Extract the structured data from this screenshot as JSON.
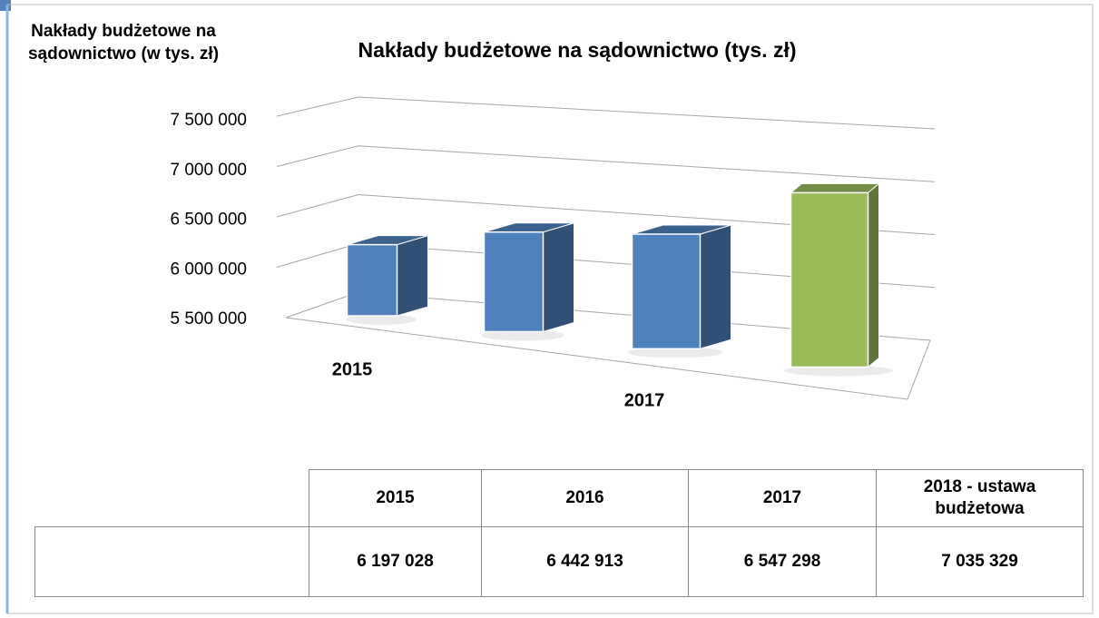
{
  "chart_data": {
    "type": "bar",
    "title": "Nakłady budżetowe na sądownictwo (tys. zł)",
    "categories": [
      "2015",
      "2016",
      "2017",
      "2018 - ustawa budżetowa"
    ],
    "series": [
      {
        "name": "Nakłady budżetowe na sądownictwo (w tys. zł)",
        "color": "#4f81bd",
        "colors": [
          "#4f81bd",
          "#4f81bd",
          "#4f81bd",
          "#9bbb59"
        ],
        "values": [
          6197028,
          6442913,
          6547298,
          7035329
        ],
        "value_labels": [
          "6 197 028",
          "6 442 913",
          "6 547 298",
          "7 035 329"
        ]
      }
    ],
    "ylim": [
      5500000,
      7500000
    ],
    "yticks": [
      {
        "value": 5500000,
        "label": "5 500 000"
      },
      {
        "value": 6000000,
        "label": "6 000 000"
      },
      {
        "value": 6500000,
        "label": "6 500 000"
      },
      {
        "value": 7000000,
        "label": "7 000 000"
      },
      {
        "value": 7500000,
        "label": "7 500 000"
      }
    ],
    "grid": true
  }
}
